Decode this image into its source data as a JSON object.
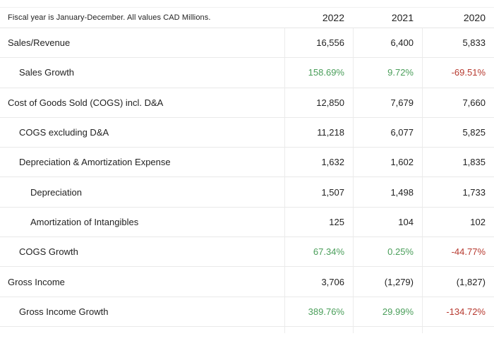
{
  "table": {
    "note": "Fiscal year is January-December. All values CAD Millions.",
    "columns": [
      "2022",
      "2021",
      "2020"
    ],
    "colors": {
      "positive": "#4a9e5a",
      "negative": "#b73a30",
      "text": "#222222",
      "row_border": "#e9e9e9",
      "column_border": "#ececec"
    },
    "rows": [
      {
        "label": "Sales/Revenue",
        "indent": 0,
        "type": "value",
        "values": [
          "16,556",
          "6,400",
          "5,833"
        ]
      },
      {
        "label": "Sales Growth",
        "indent": 1,
        "type": "growth",
        "values": [
          "158.69%",
          "9.72%",
          "-69.51%"
        ]
      },
      {
        "label": "Cost of Goods Sold (COGS) incl. D&A",
        "indent": 0,
        "type": "value",
        "values": [
          "12,850",
          "7,679",
          "7,660"
        ]
      },
      {
        "label": "COGS excluding D&A",
        "indent": 1,
        "type": "value",
        "values": [
          "11,218",
          "6,077",
          "5,825"
        ]
      },
      {
        "label": "Depreciation & Amortization Expense",
        "indent": 1,
        "type": "value",
        "values": [
          "1,632",
          "1,602",
          "1,835"
        ]
      },
      {
        "label": "Depreciation",
        "indent": 2,
        "type": "value",
        "values": [
          "1,507",
          "1,498",
          "1,733"
        ]
      },
      {
        "label": "Amortization of Intangibles",
        "indent": 2,
        "type": "value",
        "values": [
          "125",
          "104",
          "102"
        ]
      },
      {
        "label": "COGS Growth",
        "indent": 1,
        "type": "growth",
        "values": [
          "67.34%",
          "0.25%",
          "-44.77%"
        ]
      },
      {
        "label": "Gross Income",
        "indent": 0,
        "type": "value",
        "values": [
          "3,706",
          "(1,279)",
          "(1,827)"
        ]
      },
      {
        "label": "Gross Income Growth",
        "indent": 1,
        "type": "growth",
        "values": [
          "389.76%",
          "29.99%",
          "-134.72%"
        ]
      }
    ]
  }
}
